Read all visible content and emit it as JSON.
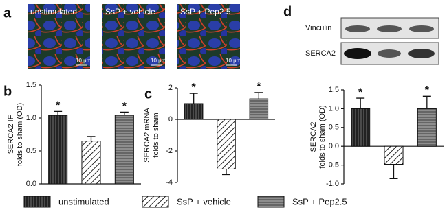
{
  "panels": [
    "a",
    "d"
  ],
  "images": [
    {
      "label": "unstimulated",
      "scale": "10 µm"
    },
    {
      "label": "SsP + vehicle",
      "scale": "10 µm"
    },
    {
      "label": "SsP + Pep2.5",
      "scale": "10 µm"
    }
  ],
  "blot": {
    "rows": [
      "Vinculin",
      "SERCA2"
    ]
  },
  "legend": [
    {
      "name": "unstimulated",
      "pattern": "vertical"
    },
    {
      "name": "SsP + vehicle",
      "pattern": "diagonal"
    },
    {
      "name": "SsP + Pep2.5",
      "pattern": "horizontal"
    }
  ],
  "chart_data": [
    {
      "type": "bar",
      "panel": "b",
      "ylabel": [
        "SERCA2 IF",
        "folds to sham (OD)"
      ],
      "categories": [
        null,
        null,
        null
      ],
      "values": [
        1.04,
        0.65,
        1.04
      ],
      "errors": [
        0.06,
        0.07,
        0.05
      ],
      "significance": [
        "*",
        null,
        "*"
      ],
      "ylim": [
        0,
        1.5
      ],
      "yticks": [
        {
          "value": 0,
          "label": "0.0"
        },
        {
          "value": 0.5,
          "label": "0.5"
        },
        {
          "value": 1,
          "label": "1.0"
        },
        {
          "value": 1.5,
          "label": "1.5"
        }
      ]
    },
    {
      "type": "bar",
      "panel": "c",
      "ylabel": [
        "SERCA2 mRNA",
        "folds to sham"
      ],
      "categories": [
        null,
        null,
        null
      ],
      "values": [
        1.0,
        -3.15,
        1.3
      ],
      "errors": [
        0.65,
        0.35,
        0.4
      ],
      "significance": [
        "*",
        null,
        "*"
      ],
      "ylim": [
        -4,
        2
      ],
      "yticks": [
        -4,
        -2,
        0,
        2
      ]
    },
    {
      "type": "bar",
      "panel": null,
      "ylabel": [
        "SERCA2",
        "folds to sham (OD)"
      ],
      "categories": [
        null,
        null,
        null
      ],
      "values": [
        1.0,
        -0.48,
        1.0
      ],
      "errors": [
        0.28,
        0.38,
        0.33
      ],
      "significance": [
        "*",
        null,
        "*"
      ],
      "ylim": [
        -1,
        1.5
      ],
      "yticks": [
        {
          "value": -1,
          "label": "-1.0"
        },
        {
          "value": -0.5,
          "label": "-0.5"
        },
        {
          "value": 0,
          "label": "0.0"
        },
        {
          "value": 0.5,
          "label": "0.5"
        },
        {
          "value": 1,
          "label": "1.0"
        },
        {
          "value": 1.5,
          "label": "1.5"
        }
      ]
    }
  ]
}
